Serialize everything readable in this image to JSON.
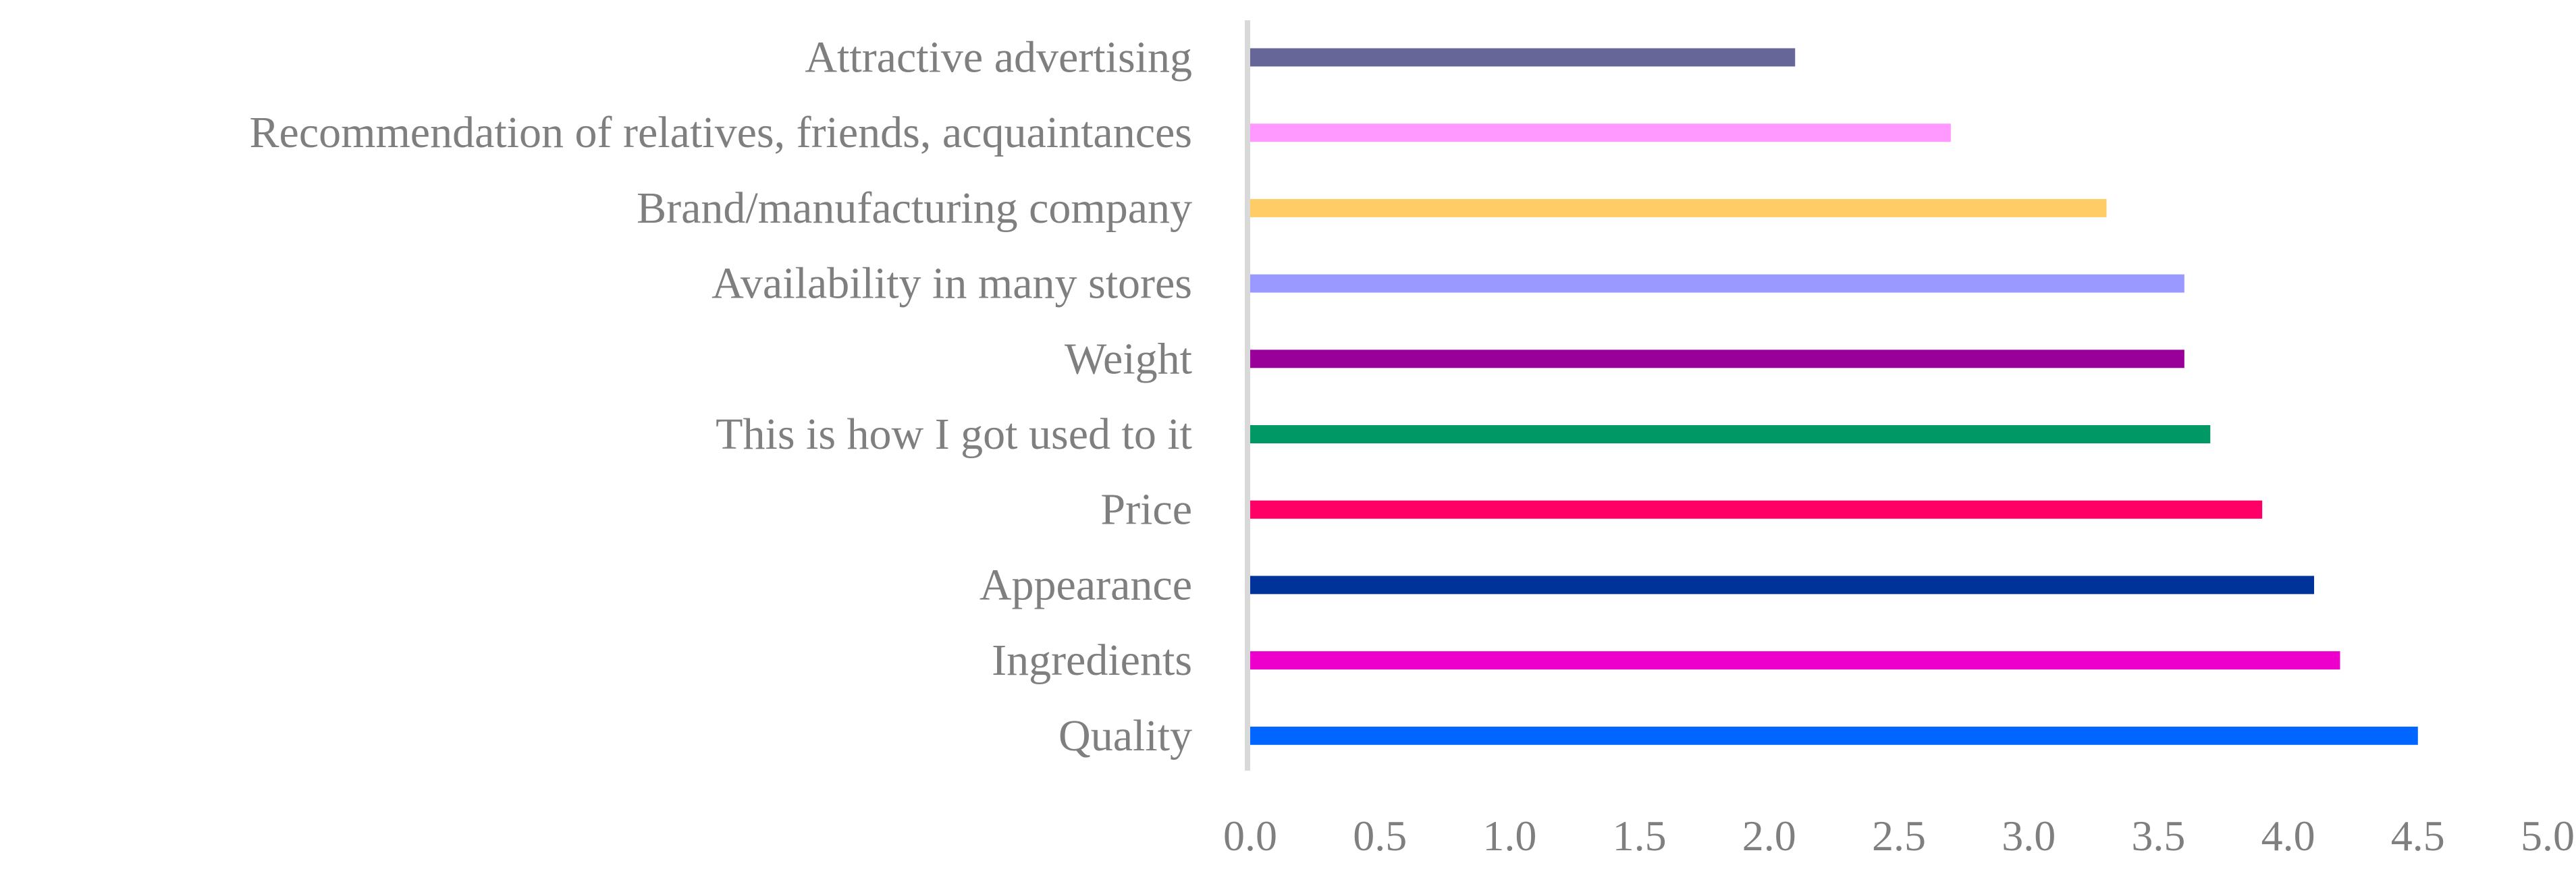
{
  "chart_data": {
    "type": "bar",
    "orientation": "horizontal",
    "title": "",
    "xlabel": "",
    "ylabel": "",
    "grid": false,
    "legend": "none",
    "xlim": [
      0,
      5
    ],
    "x_ticks": [
      "0.0",
      "0.5",
      "1.0",
      "1.5",
      "2.0",
      "2.5",
      "3.0",
      "3.5",
      "4.0",
      "4.5",
      "5.0"
    ],
    "categories": [
      "Attractive advertising",
      "Recommendation of relatives, friends, acquaintances",
      "Brand/manufacturing company",
      "Availability in many stores",
      "Weight",
      "This is how I got used to it",
      "Price",
      "Appearance",
      "Ingredients",
      "Quality"
    ],
    "values": [
      2.1,
      2.7,
      3.3,
      3.6,
      3.6,
      3.7,
      3.9,
      4.1,
      4.2,
      4.5
    ],
    "colors": [
      "#666699",
      "#ff99ff",
      "#ffcc66",
      "#9999ff",
      "#990099",
      "#009966",
      "#ff0066",
      "#003399",
      "#ee00cc",
      "#0066ff"
    ],
    "axis_color": "#d9d9d9",
    "text_color": "#7f7f7f"
  }
}
